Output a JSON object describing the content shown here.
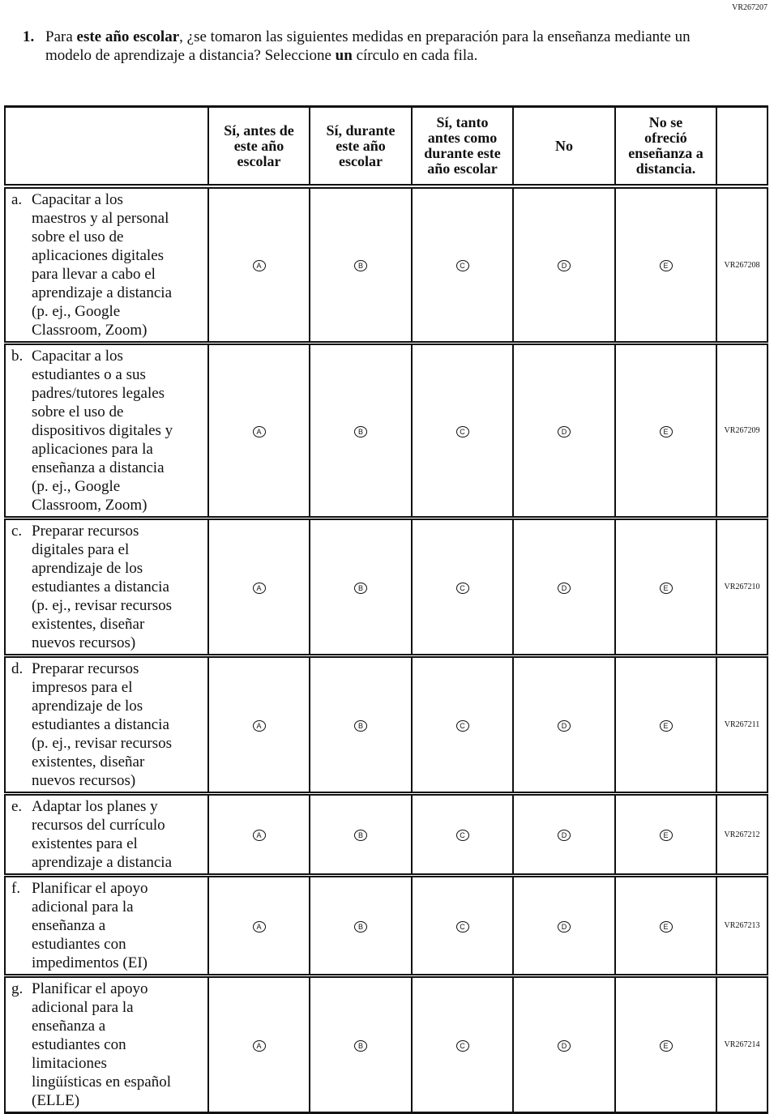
{
  "page_code": "VR267207",
  "question": {
    "number": "1.",
    "text_parts": [
      "Para ",
      "este año escolar",
      ", ¿se tomaron las siguientes medidas en preparación para la enseñanza mediante un modelo de aprendizaje a distancia? Seleccione ",
      "un",
      " círculo en cada fila."
    ]
  },
  "columns": [
    "Sí, antes de\neste año\nescolar",
    "Sí, durante\neste año\nescolar",
    "Sí, tanto\nantes como\ndurante este\naño escolar",
    "No",
    "No se\nofreció\nenseñanza a\ndistancia."
  ],
  "bubbles": [
    "A",
    "B",
    "C",
    "D",
    "E"
  ],
  "rows": [
    {
      "letter": "a.",
      "text": "Capacitar a los\nmaestros y al personal\nsobre el uso de\naplicaciones digitales\npara llevar a cabo el\naprendizaje a distancia\n(p. ej., Google\nClassroom, Zoom)",
      "code": "VR267208"
    },
    {
      "letter": "b.",
      "text": "Capacitar a los\nestudiantes o a sus\npadres/tutores legales\nsobre el uso de\ndispositivos digitales y\naplicaciones para la\nenseñanza a distancia\n(p. ej., Google\nClassroom, Zoom)",
      "code": "VR267209"
    },
    {
      "letter": "c.",
      "text": "Preparar recursos\ndigitales para el\naprendizaje de los\nestudiantes a distancia\n(p. ej., revisar recursos\nexistentes, diseñar\nnuevos recursos)",
      "code": "VR267210"
    },
    {
      "letter": "d.",
      "text": "Preparar recursos\nimpresos para el\naprendizaje de los\nestudiantes a distancia\n(p. ej., revisar recursos\nexistentes, diseñar\nnuevos recursos)",
      "code": "VR267211"
    },
    {
      "letter": "e.",
      "text": "Adaptar los planes y\nrecursos del currículo\nexistentes para el\naprendizaje a distancia",
      "code": "VR267212"
    },
    {
      "letter": "f.",
      "text": "Planificar el apoyo\nadicional para la\nenseñanza a\nestudiantes con\nimpedimentos (EI)",
      "code": "VR267213"
    },
    {
      "letter": "g.",
      "text": "Planificar el apoyo\nadicional para la\nenseñanza a\nestudiantes con\nlimitaciones\nlingüísticas en español\n(ELLE)",
      "code": "VR267214"
    }
  ]
}
